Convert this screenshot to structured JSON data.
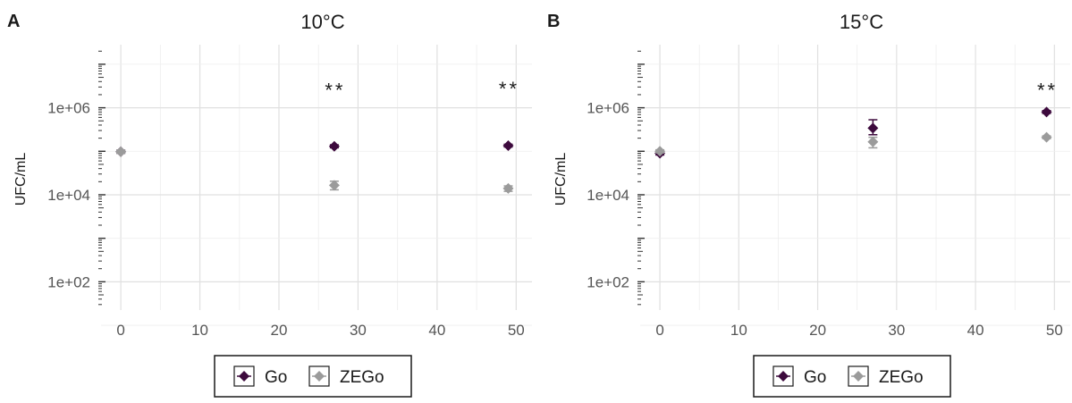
{
  "chart_data": [
    {
      "panel": "A",
      "type": "scatter",
      "title": "10°C",
      "xlabel": "",
      "ylabel": "UFC/mL",
      "y_scale": "log10",
      "xlim": [
        -2.5,
        52
      ],
      "ylim_log10": [
        1.35,
        7.45
      ],
      "x_ticks": [
        0,
        10,
        20,
        30,
        40,
        50
      ],
      "x_tick_labels": [
        "0",
        "10",
        "20",
        "30",
        "40",
        "50"
      ],
      "y_ticks": [
        100,
        10000,
        1000000
      ],
      "y_tick_labels": [
        "1e+02",
        "1e+04",
        "1e+06"
      ],
      "grid": true,
      "series": [
        {
          "name": "Go",
          "color": "#3d0a3d",
          "marker": "diamond",
          "x": [
            0,
            27,
            49
          ],
          "y": [
            98000,
            130000,
            135000
          ],
          "y_err_low": [
            90000,
            120000,
            125000
          ],
          "y_err_high": [
            106000,
            141000,
            145000
          ]
        },
        {
          "name": "ZEGo",
          "color": "#9b9b9b",
          "marker": "diamond",
          "x": [
            0,
            27,
            49
          ],
          "y": [
            98000,
            16500,
            14000
          ],
          "y_err_low": [
            90000,
            13000,
            12000
          ],
          "y_err_high": [
            106000,
            20500,
            16000
          ]
        }
      ],
      "annotations": [
        {
          "text": "**",
          "x": 27,
          "y": 3000000
        },
        {
          "text": "**",
          "x": 49,
          "y": 3200000
        }
      ]
    },
    {
      "panel": "B",
      "type": "scatter",
      "title": "15°C",
      "xlabel": "",
      "ylabel": "UFC/mL",
      "y_scale": "log10",
      "xlim": [
        -2.5,
        52
      ],
      "ylim_log10": [
        1.35,
        7.45
      ],
      "x_ticks": [
        0,
        10,
        20,
        30,
        40,
        50
      ],
      "x_tick_labels": [
        "0",
        "10",
        "20",
        "30",
        "40",
        "50"
      ],
      "y_ticks": [
        100,
        10000,
        1000000
      ],
      "y_tick_labels": [
        "1e+02",
        "1e+04",
        "1e+06"
      ],
      "grid": true,
      "series": [
        {
          "name": "Go",
          "color": "#3d0a3d",
          "marker": "diamond",
          "x": [
            0,
            27,
            49
          ],
          "y": [
            90000,
            340000,
            800000
          ],
          "y_err_low": [
            82000,
            240000,
            740000
          ],
          "y_err_high": [
            98000,
            530000,
            860000
          ]
        },
        {
          "name": "ZEGo",
          "color": "#9b9b9b",
          "marker": "diamond",
          "x": [
            0,
            27,
            49
          ],
          "y": [
            100000,
            165000,
            210000
          ],
          "y_err_low": [
            92000,
            120000,
            195000
          ],
          "y_err_high": [
            108000,
            210000,
            225000
          ]
        }
      ],
      "annotations": [
        {
          "text": "**",
          "x": 49,
          "y": 3000000
        }
      ]
    }
  ],
  "legend": {
    "placement": "bottom",
    "items": [
      {
        "name": "Go",
        "color": "#3d0a3d"
      },
      {
        "name": "ZEGo",
        "color": "#9b9b9b"
      }
    ]
  }
}
